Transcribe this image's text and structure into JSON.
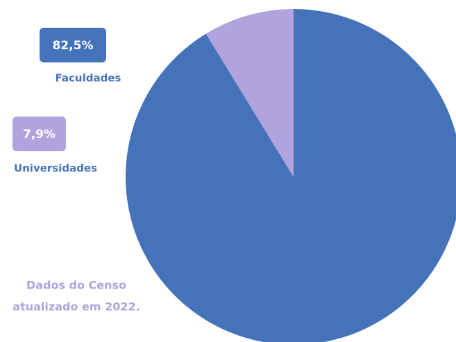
{
  "chart_data": {
    "type": "pie",
    "categories": [
      "Faculdades",
      "Universidades"
    ],
    "values": [
      82.5,
      7.9
    ],
    "value_labels": [
      "82,5%",
      "7,9%"
    ],
    "colors": [
      "#4573b9",
      "#b1a3dd"
    ],
    "annotation": [
      "Dados do Censo",
      "atualizado em 2022."
    ]
  }
}
